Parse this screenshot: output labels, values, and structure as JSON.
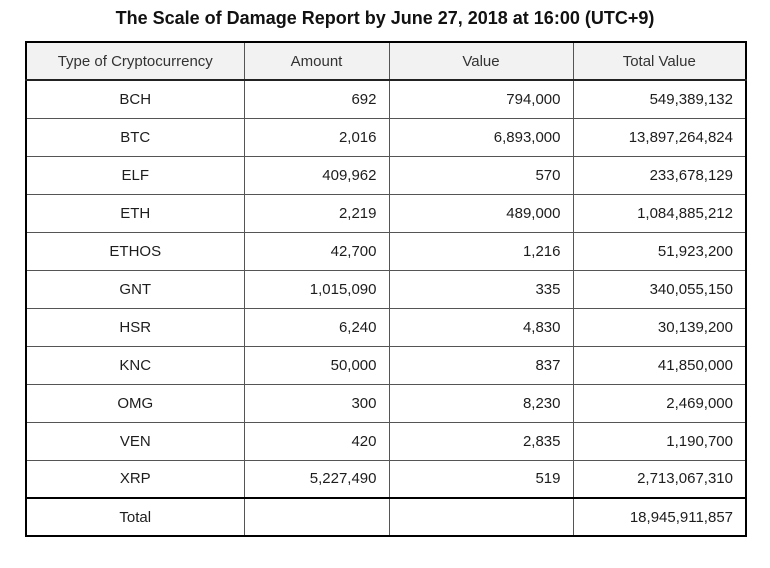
{
  "title": "The Scale of Damage Report by June 27, 2018 at 16:00 (UTC+9)",
  "table": {
    "headers": [
      "Type of Cryptocurrency",
      "Amount",
      "Value",
      "Total  Value"
    ],
    "rows": [
      {
        "type": "BCH",
        "amount": "692",
        "value": "794,000",
        "total": "549,389,132"
      },
      {
        "type": "BTC",
        "amount": "2,016",
        "value": "6,893,000",
        "total": "13,897,264,824"
      },
      {
        "type": "ELF",
        "amount": "409,962",
        "value": "570",
        "total": "233,678,129"
      },
      {
        "type": "ETH",
        "amount": "2,219",
        "value": "489,000",
        "total": "1,084,885,212"
      },
      {
        "type": "ETHOS",
        "amount": "42,700",
        "value": "1,216",
        "total": "51,923,200"
      },
      {
        "type": "GNT",
        "amount": "1,015,090",
        "value": "335",
        "total": "340,055,150"
      },
      {
        "type": "HSR",
        "amount": "6,240",
        "value": "4,830",
        "total": "30,139,200"
      },
      {
        "type": "KNC",
        "amount": "50,000",
        "value": "837",
        "total": "41,850,000"
      },
      {
        "type": "OMG",
        "amount": "300",
        "value": "8,230",
        "total": "2,469,000"
      },
      {
        "type": "VEN",
        "amount": "420",
        "value": "2,835",
        "total": "1,190,700"
      },
      {
        "type": "XRP",
        "amount": "5,227,490",
        "value": "519",
        "total": "2,713,067,310"
      }
    ],
    "total_row": {
      "label": "Total",
      "amount": "",
      "value": "",
      "total": "18,945,911,857"
    }
  },
  "chart_data": {
    "type": "table",
    "title": "The Scale of Damage Report by June 27, 2018 at 16:00 (UTC+9)",
    "columns": [
      "Type of Cryptocurrency",
      "Amount",
      "Value",
      "Total Value"
    ],
    "rows": [
      [
        "BCH",
        692,
        794000,
        549389132
      ],
      [
        "BTC",
        2016,
        6893000,
        13897264824
      ],
      [
        "ELF",
        409962,
        570,
        233678129
      ],
      [
        "ETH",
        2219,
        489000,
        1084885212
      ],
      [
        "ETHOS",
        42700,
        1216,
        51923200
      ],
      [
        "GNT",
        1015090,
        335,
        340055150
      ],
      [
        "HSR",
        6240,
        4830,
        30139200
      ],
      [
        "KNC",
        50000,
        837,
        41850000
      ],
      [
        "OMG",
        300,
        8230,
        2469000
      ],
      [
        "VEN",
        420,
        2835,
        1190700
      ],
      [
        "XRP",
        5227490,
        519,
        2713067310
      ]
    ],
    "total_row": [
      "Total",
      null,
      null,
      18945911857
    ],
    "layout_hints": {
      "header_background": "#f2f2f2",
      "outer_border": "2px solid #000000",
      "inner_border": "1px solid #555555",
      "numeric_alignment": "right",
      "first_column_alignment": "center"
    }
  }
}
